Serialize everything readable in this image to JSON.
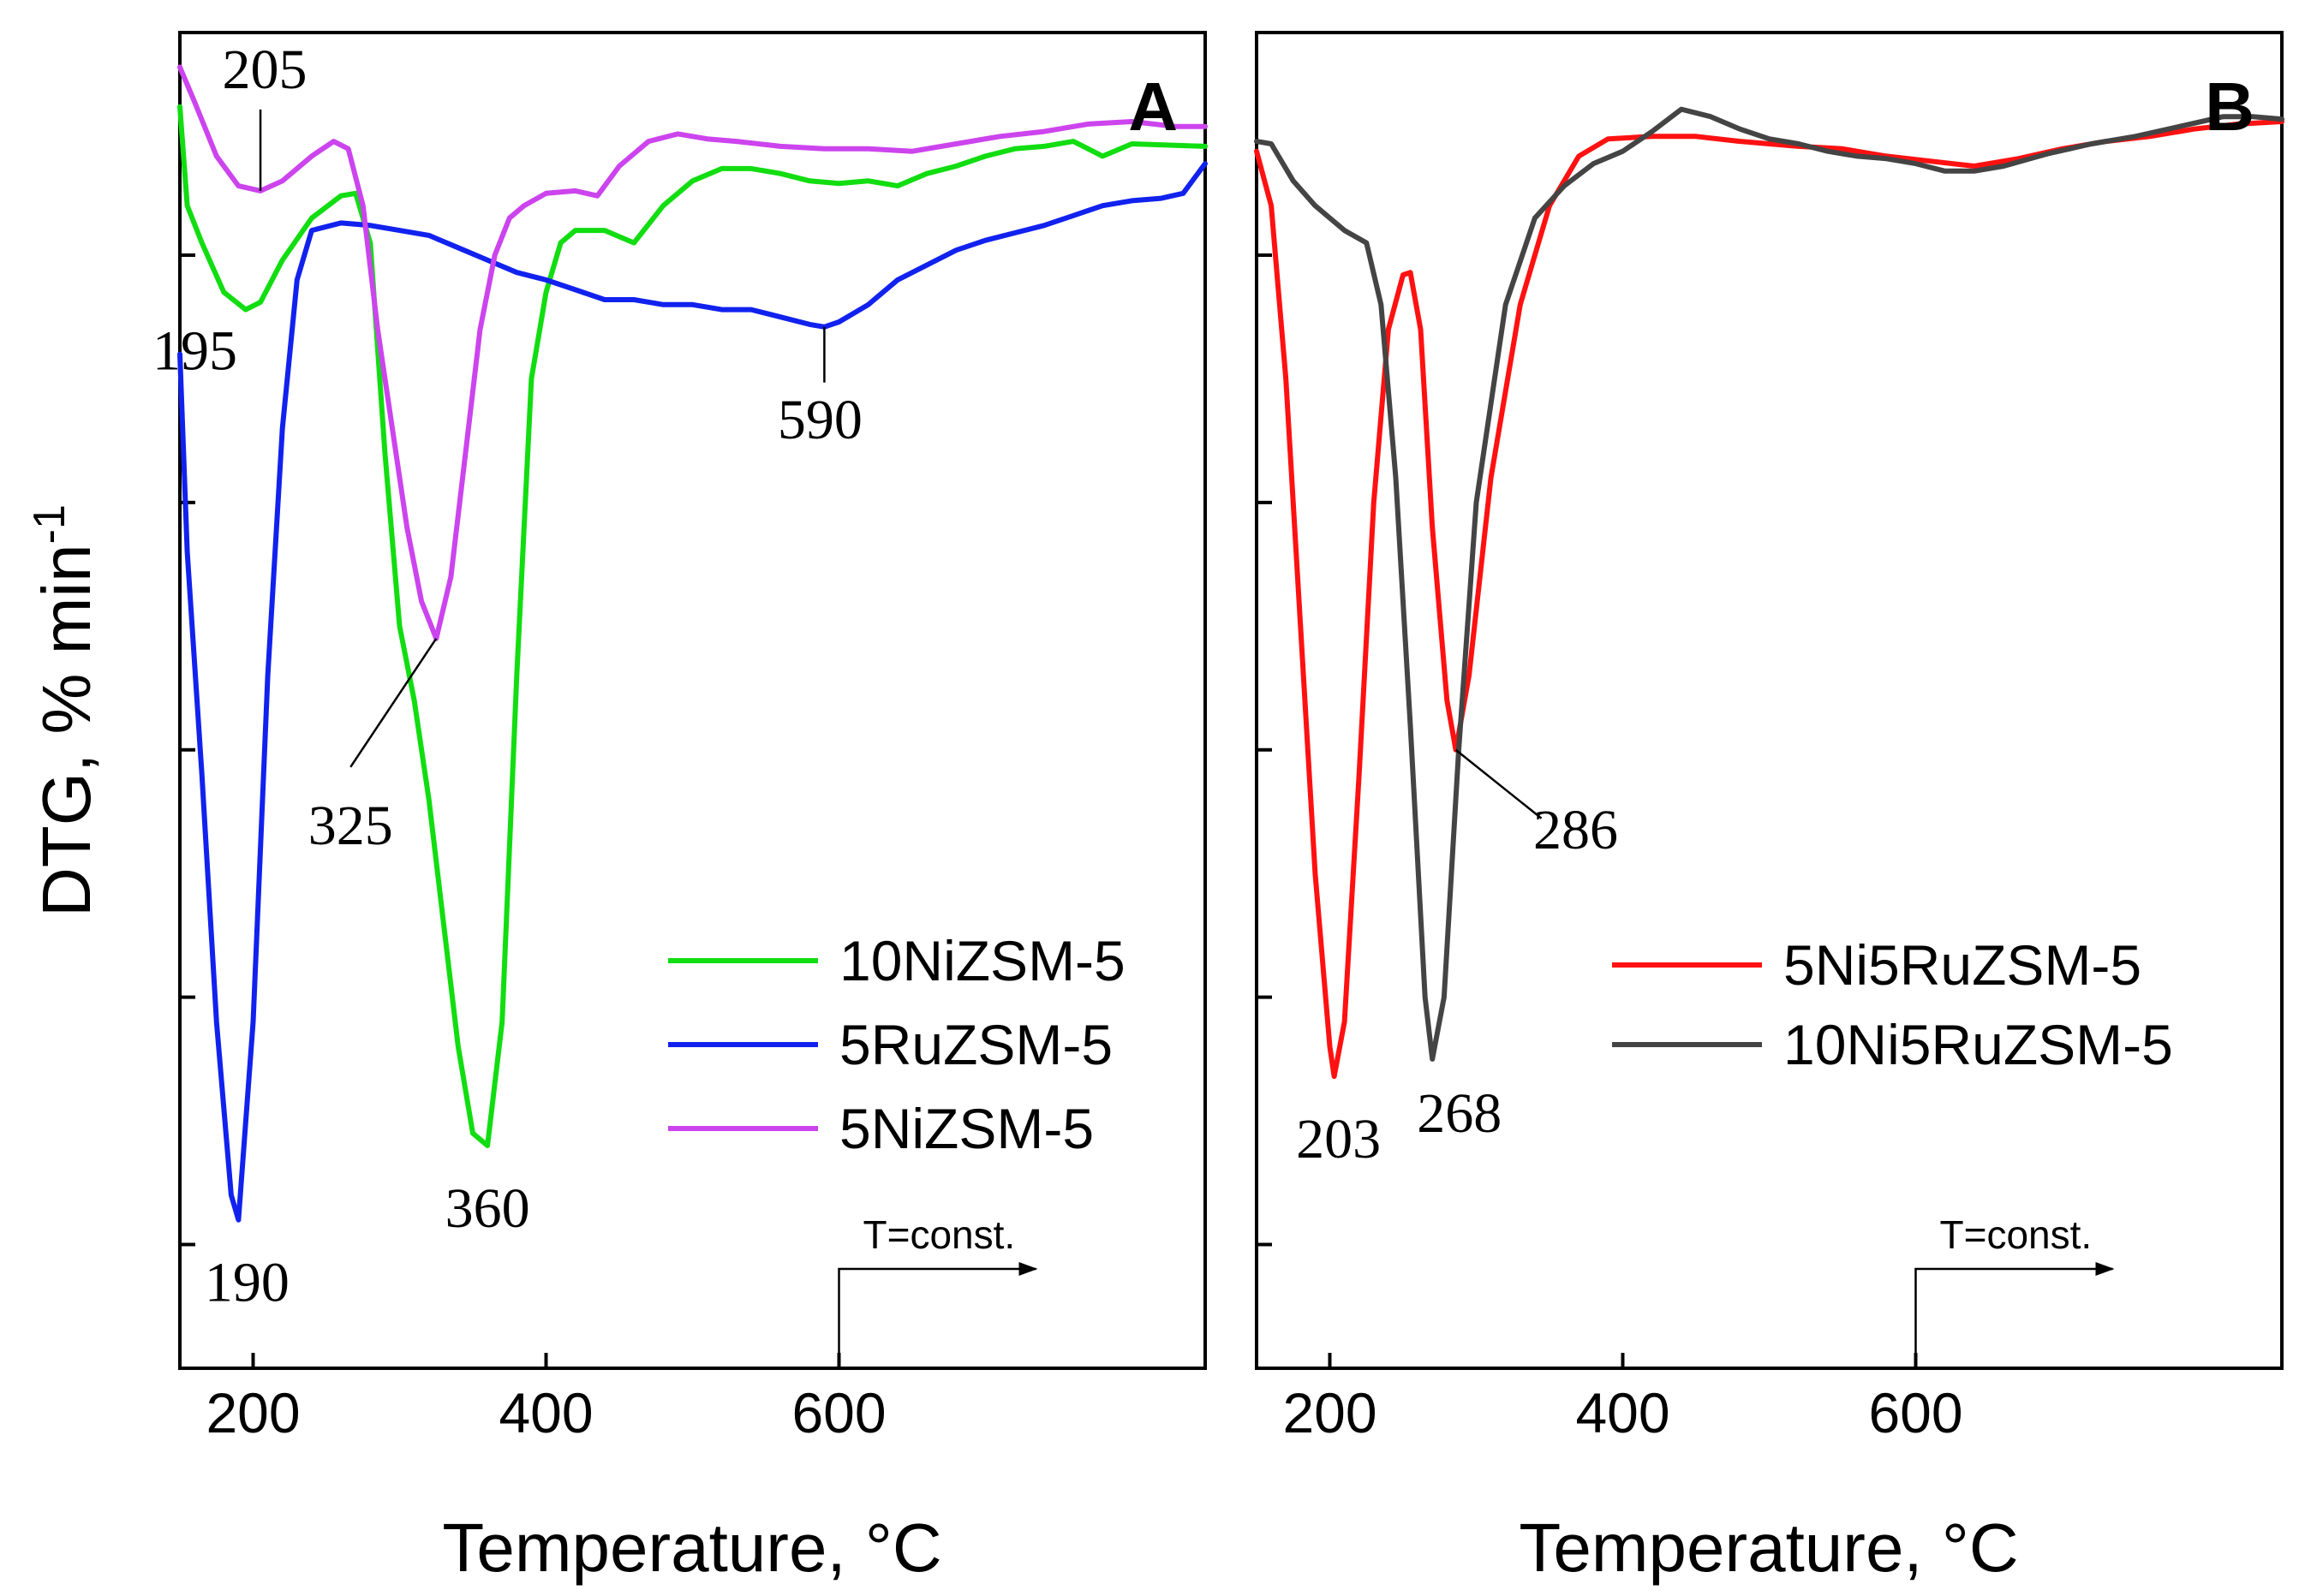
{
  "chart_data": [
    {
      "type": "line",
      "panel": "A",
      "xlabel": "Temperature, °C",
      "ylabel": "DTG, % min",
      "ylabel_sup": "-1",
      "xlim": [
        150,
        850
      ],
      "ylim": [
        -40,
        14
      ],
      "xticks": [
        200,
        400,
        600
      ],
      "grid": false,
      "legend_position": "bottom-right",
      "series": [
        {
          "name": "10NiZSM-5",
          "color": "#11dd11",
          "points": [
            [
              150,
              11
            ],
            [
              155,
              7
            ],
            [
              165,
              5.5
            ],
            [
              180,
              3.5
            ],
            [
              195,
              2.8
            ],
            [
              205,
              3.1
            ],
            [
              220,
              4.8
            ],
            [
              240,
              6.5
            ],
            [
              260,
              7.4
            ],
            [
              270,
              7.5
            ],
            [
              280,
              5.5
            ],
            [
              290,
              -3
            ],
            [
              300,
              -10
            ],
            [
              310,
              -13
            ],
            [
              320,
              -17
            ],
            [
              330,
              -22
            ],
            [
              340,
              -27
            ],
            [
              350,
              -30.5
            ],
            [
              360,
              -31
            ],
            [
              370,
              -26
            ],
            [
              380,
              -12
            ],
            [
              390,
              0
            ],
            [
              400,
              3.5
            ],
            [
              410,
              5.5
            ],
            [
              420,
              6
            ],
            [
              440,
              6
            ],
            [
              460,
              5.5
            ],
            [
              480,
              7
            ],
            [
              500,
              8
            ],
            [
              520,
              8.5
            ],
            [
              540,
              8.5
            ],
            [
              560,
              8.3
            ],
            [
              580,
              8
            ],
            [
              600,
              7.9
            ],
            [
              620,
              8
            ],
            [
              640,
              7.8
            ],
            [
              660,
              8.3
            ],
            [
              680,
              8.6
            ],
            [
              700,
              9
            ],
            [
              720,
              9.3
            ],
            [
              740,
              9.4
            ],
            [
              760,
              9.6
            ],
            [
              780,
              9
            ],
            [
              800,
              9.5
            ],
            [
              850,
              9.4
            ]
          ]
        },
        {
          "name": "5RuZSM-5",
          "color": "#1122ee",
          "points": [
            [
              150,
              1
            ],
            [
              155,
              -7
            ],
            [
              165,
              -16
            ],
            [
              175,
              -26
            ],
            [
              185,
              -33
            ],
            [
              190,
              -34
            ],
            [
              200,
              -26
            ],
            [
              210,
              -12
            ],
            [
              220,
              -2
            ],
            [
              230,
              4
            ],
            [
              240,
              6
            ],
            [
              260,
              6.3
            ],
            [
              280,
              6.2
            ],
            [
              300,
              6
            ],
            [
              320,
              5.8
            ],
            [
              340,
              5.3
            ],
            [
              360,
              4.8
            ],
            [
              380,
              4.3
            ],
            [
              400,
              4
            ],
            [
              420,
              3.6
            ],
            [
              440,
              3.2
            ],
            [
              460,
              3.2
            ],
            [
              480,
              3
            ],
            [
              500,
              3
            ],
            [
              520,
              2.8
            ],
            [
              540,
              2.8
            ],
            [
              560,
              2.5
            ],
            [
              580,
              2.2
            ],
            [
              590,
              2.1
            ],
            [
              600,
              2.3
            ],
            [
              620,
              3
            ],
            [
              640,
              4
            ],
            [
              660,
              4.6
            ],
            [
              680,
              5.2
            ],
            [
              700,
              5.6
            ],
            [
              720,
              5.9
            ],
            [
              740,
              6.2
            ],
            [
              760,
              6.6
            ],
            [
              780,
              7
            ],
            [
              800,
              7.2
            ],
            [
              820,
              7.3
            ],
            [
              835,
              7.5
            ],
            [
              850,
              8.7
            ]
          ]
        },
        {
          "name": "5NiZSM-5",
          "color": "#cc44ee",
          "points": [
            [
              150,
              12.6
            ],
            [
              160,
              11.2
            ],
            [
              175,
              9
            ],
            [
              190,
              7.8
            ],
            [
              205,
              7.6
            ],
            [
              220,
              8
            ],
            [
              240,
              9
            ],
            [
              255,
              9.6
            ],
            [
              265,
              9.3
            ],
            [
              275,
              7
            ],
            [
              285,
              2
            ],
            [
              295,
              -2
            ],
            [
              305,
              -6
            ],
            [
              315,
              -9
            ],
            [
              325,
              -10.5
            ],
            [
              335,
              -8
            ],
            [
              345,
              -3
            ],
            [
              355,
              2
            ],
            [
              365,
              5
            ],
            [
              375,
              6.5
            ],
            [
              385,
              7
            ],
            [
              400,
              7.5
            ],
            [
              420,
              7.6
            ],
            [
              435,
              7.4
            ],
            [
              450,
              8.6
            ],
            [
              470,
              9.6
            ],
            [
              490,
              9.9
            ],
            [
              510,
              9.7
            ],
            [
              530,
              9.6
            ],
            [
              560,
              9.4
            ],
            [
              590,
              9.3
            ],
            [
              620,
              9.3
            ],
            [
              650,
              9.2
            ],
            [
              680,
              9.5
            ],
            [
              710,
              9.8
            ],
            [
              740,
              10
            ],
            [
              770,
              10.3
            ],
            [
              800,
              10.4
            ],
            [
              830,
              10.2
            ],
            [
              850,
              10.2
            ]
          ]
        }
      ],
      "annotations": [
        {
          "text": "205",
          "x": 205,
          "y": 7.6
        },
        {
          "text": "195",
          "x": 195,
          "y": 2.8
        },
        {
          "text": "325",
          "x": 325,
          "y": -10.5
        },
        {
          "text": "360",
          "x": 360,
          "y": -31
        },
        {
          "text": "190",
          "x": 190,
          "y": -34
        },
        {
          "text": "590",
          "x": 590,
          "y": 2.1
        }
      ],
      "panel_label": "A",
      "tconst_label": "T=const.",
      "tconst_x": 600
    },
    {
      "type": "line",
      "panel": "B",
      "xlabel": "Temperature, °C",
      "xlim": [
        150,
        850
      ],
      "ylim": [
        -40,
        14
      ],
      "xticks": [
        200,
        400,
        600
      ],
      "grid": false,
      "legend_position": "bottom-right",
      "series": [
        {
          "name": "5Ni5RuZSM-5",
          "color": "#ff1111",
          "points": [
            [
              150,
              9.2
            ],
            [
              160,
              7
            ],
            [
              170,
              0
            ],
            [
              180,
              -10
            ],
            [
              190,
              -20
            ],
            [
              200,
              -27
            ],
            [
              203,
              -28.2
            ],
            [
              210,
              -26
            ],
            [
              220,
              -16
            ],
            [
              230,
              -5
            ],
            [
              240,
              2
            ],
            [
              250,
              4.2
            ],
            [
              255,
              4.3
            ],
            [
              262,
              2
            ],
            [
              270,
              -6
            ],
            [
              280,
              -13
            ],
            [
              286,
              -15
            ],
            [
              295,
              -12
            ],
            [
              310,
              -4
            ],
            [
              330,
              3
            ],
            [
              350,
              7
            ],
            [
              370,
              9
            ],
            [
              390,
              9.7
            ],
            [
              420,
              9.8
            ],
            [
              450,
              9.8
            ],
            [
              480,
              9.6
            ],
            [
              500,
              9.5
            ],
            [
              520,
              9.4
            ],
            [
              550,
              9.3
            ],
            [
              580,
              9
            ],
            [
              610,
              8.8
            ],
            [
              640,
              8.6
            ],
            [
              670,
              8.9
            ],
            [
              700,
              9.3
            ],
            [
              730,
              9.6
            ],
            [
              760,
              9.8
            ],
            [
              790,
              10.1
            ],
            [
              820,
              10.3
            ],
            [
              850,
              10.4
            ]
          ]
        },
        {
          "name": "10Ni5RuZSM-5",
          "color": "#444444",
          "points": [
            [
              150,
              9.6
            ],
            [
              160,
              9.5
            ],
            [
              175,
              8
            ],
            [
              190,
              7
            ],
            [
              210,
              6
            ],
            [
              225,
              5.5
            ],
            [
              235,
              3
            ],
            [
              245,
              -4
            ],
            [
              255,
              -14
            ],
            [
              265,
              -25
            ],
            [
              270,
              -27.5
            ],
            [
              278,
              -25
            ],
            [
              288,
              -15
            ],
            [
              300,
              -5
            ],
            [
              320,
              3
            ],
            [
              340,
              6.5
            ],
            [
              360,
              7.8
            ],
            [
              380,
              8.7
            ],
            [
              400,
              9.2
            ],
            [
              420,
              10
            ],
            [
              440,
              10.9
            ],
            [
              460,
              10.6
            ],
            [
              480,
              10.1
            ],
            [
              500,
              9.7
            ],
            [
              520,
              9.5
            ],
            [
              540,
              9.2
            ],
            [
              560,
              9
            ],
            [
              580,
              8.9
            ],
            [
              600,
              8.7
            ],
            [
              620,
              8.4
            ],
            [
              640,
              8.4
            ],
            [
              660,
              8.6
            ],
            [
              690,
              9.1
            ],
            [
              720,
              9.5
            ],
            [
              750,
              9.8
            ],
            [
              780,
              10.2
            ],
            [
              810,
              10.6
            ],
            [
              830,
              10.6
            ],
            [
              850,
              10.5
            ]
          ]
        }
      ],
      "annotations": [
        {
          "text": "203",
          "x": 203,
          "y": -28.2
        },
        {
          "text": "268",
          "x": 268,
          "y": -27.5
        },
        {
          "text": "286",
          "x": 286,
          "y": -15
        }
      ],
      "panel_label": "B",
      "tconst_label": "T=const.",
      "tconst_x": 600
    }
  ]
}
